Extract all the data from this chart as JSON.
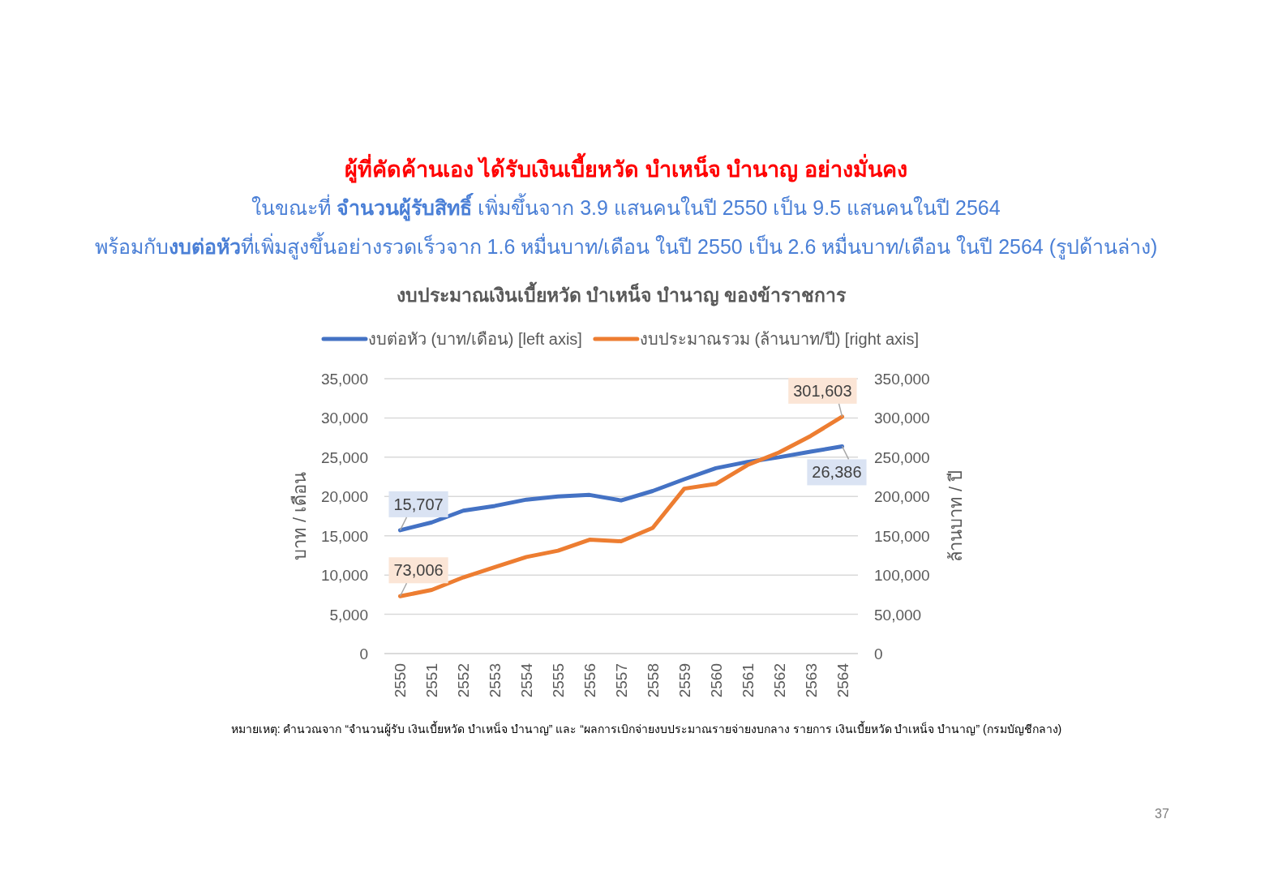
{
  "chart_data": {
    "type": "line",
    "title": "งบประมาณเงินเบี้ยหวัด บำเหน็จ บำนาญ ของข้าราชการ",
    "ylabel": "บาท / เดือน",
    "y2label": "ล้านบาท / ปี",
    "categories": [
      "2550",
      "2551",
      "2552",
      "2553",
      "2554",
      "2555",
      "2556",
      "2557",
      "2558",
      "2559",
      "2560",
      "2561",
      "2562",
      "2563",
      "2564"
    ],
    "series": [
      {
        "name": "งบต่อหัว (บาท/เดือน) [left axis]",
        "color": "#4472c4",
        "values": [
          15707,
          16700,
          18200,
          18800,
          19600,
          20000,
          20200,
          19500,
          20700,
          22200,
          23600,
          24400,
          25000,
          25700,
          26386
        ],
        "value_labels": [
          "15,707",
          null,
          null,
          null,
          null,
          null,
          null,
          null,
          null,
          null,
          null,
          null,
          null,
          null,
          "26,386"
        ]
      },
      {
        "name": "งบประมาณรวม (ล้านบาท/ปี) [right axis]",
        "color": "#ed7d31",
        "axis": "y2",
        "values": [
          73006,
          81000,
          97000,
          110000,
          123000,
          131000,
          145000,
          143000,
          160000,
          210000,
          216000,
          240000,
          256000,
          277000,
          301603
        ],
        "value_labels": [
          "73,006",
          null,
          null,
          null,
          null,
          null,
          null,
          null,
          null,
          null,
          null,
          null,
          null,
          null,
          "301,603"
        ]
      }
    ],
    "ylim": [
      0,
      35000
    ],
    "yticks": [
      {
        "value": 0,
        "label": "0"
      },
      {
        "value": 5000,
        "label": "5,000"
      },
      {
        "value": 10000,
        "label": "10,000"
      },
      {
        "value": 15000,
        "label": "15,000"
      },
      {
        "value": 20000,
        "label": "20,000"
      },
      {
        "value": 25000,
        "label": "25,000"
      },
      {
        "value": 30000,
        "label": "30,000"
      },
      {
        "value": 35000,
        "label": "35,000"
      }
    ],
    "y2lim": [
      0,
      350000
    ],
    "y2ticks": [
      {
        "value": 0,
        "label": "0"
      },
      {
        "value": 50000,
        "label": "50,000"
      },
      {
        "value": 100000,
        "label": "100,000"
      },
      {
        "value": 150000,
        "label": "150,000"
      },
      {
        "value": 200000,
        "label": "200,000"
      },
      {
        "value": 250000,
        "label": "250,000"
      },
      {
        "value": 300000,
        "label": "300,000"
      },
      {
        "value": 350000,
        "label": "350,000"
      }
    ],
    "grid": "y",
    "legend": "top",
    "annotations": [
      "ผู้ที่คัดค้านเอง ได้รับเงินเบี้ยหวัด บำเหน็จ บำนาญ อย่างมั่นคง",
      "ในขณะที่ **จำนวนผู้รับสิทธิ์** เพิ่มขึ้นจาก 3.9 แสนคนในปี 2550 เป็น 9.5 แสนคนในปี 2564",
      "พร้อมกับ**งบต่อหัว**ที่เพิ่มสูงขึ้นอย่างรวดเร็วจาก 1.6 หมื่นบาท/เดือน ในปี 2550 เป็น 2.6 หมื่นบาท/เดือน ในปี 2564 (รูปด้านล่าง)",
      "หมายเหตุ: คำนวณจาก “จำนวนผู้รับ เงินเบี้ยหวัด บำเหน็จ บำนาญ” และ “ผลการเบิกจ่ายงบประมาณรายจ่ายงบกลาง รายการ เงินเบี้ยหวัด บำเหน็จ บำนาญ” (กรมบัญชีกลาง)",
      "37"
    ]
  }
}
